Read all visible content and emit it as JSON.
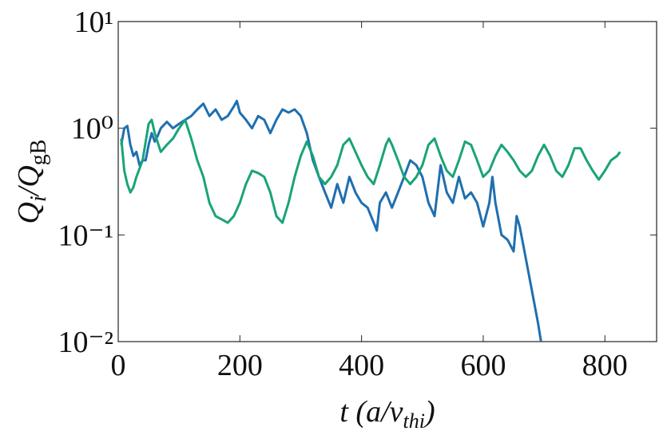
{
  "chart_data": {
    "type": "line",
    "xlabel": [
      "t (a/v",
      "thi",
      ")"
    ],
    "ylabel": [
      "Q",
      "i",
      "/Q",
      "gB"
    ],
    "xlim": [
      0,
      885
    ],
    "ylim": [
      0.01,
      10
    ],
    "log_y": true,
    "xticks": [
      0,
      200,
      400,
      600,
      800
    ],
    "yticks": [
      {
        "value": 0.01,
        "label": "10⁻²"
      },
      {
        "value": 0.1,
        "label": "10⁻¹"
      },
      {
        "value": 1,
        "label": "10⁰"
      },
      {
        "value": 10,
        "label": "10¹"
      }
    ],
    "series": [
      {
        "color": "#1f6fb0",
        "x": [
          5,
          10,
          15,
          20,
          25,
          30,
          35,
          40,
          45,
          50,
          55,
          60,
          65,
          70,
          80,
          90,
          100,
          110,
          120,
          130,
          140,
          150,
          160,
          170,
          180,
          190,
          195,
          200,
          210,
          220,
          230,
          240,
          250,
          260,
          270,
          280,
          290,
          300,
          310,
          320,
          330,
          340,
          350,
          360,
          370,
          380,
          390,
          400,
          410,
          420,
          425,
          430,
          440,
          450,
          460,
          470,
          480,
          490,
          500,
          510,
          520,
          530,
          540,
          550,
          560,
          570,
          580,
          590,
          600,
          610,
          615,
          620,
          630,
          640,
          650,
          655,
          660,
          670,
          680,
          690,
          695
        ],
        "values": [
          0.7,
          1.0,
          1.05,
          0.7,
          0.55,
          0.6,
          0.45,
          0.5,
          0.5,
          0.7,
          0.9,
          0.75,
          0.85,
          1.0,
          1.15,
          1.0,
          1.1,
          1.2,
          1.3,
          1.5,
          1.7,
          1.3,
          1.5,
          1.2,
          1.3,
          1.6,
          1.8,
          1.4,
          1.2,
          1.0,
          1.3,
          1.2,
          0.9,
          1.2,
          1.5,
          1.4,
          1.5,
          1.3,
          0.9,
          0.5,
          0.35,
          0.25,
          0.18,
          0.3,
          0.2,
          0.35,
          0.25,
          0.2,
          0.18,
          0.13,
          0.11,
          0.2,
          0.25,
          0.18,
          0.25,
          0.35,
          0.5,
          0.45,
          0.35,
          0.2,
          0.15,
          0.45,
          0.25,
          0.2,
          0.35,
          0.22,
          0.25,
          0.2,
          0.12,
          0.2,
          0.35,
          0.2,
          0.1,
          0.09,
          0.07,
          0.15,
          0.12,
          0.06,
          0.03,
          0.015,
          0.01
        ]
      },
      {
        "color": "#1aa37a",
        "x": [
          5,
          10,
          15,
          20,
          25,
          30,
          40,
          50,
          55,
          60,
          70,
          80,
          90,
          100,
          110,
          120,
          130,
          140,
          150,
          160,
          170,
          180,
          190,
          200,
          210,
          220,
          230,
          240,
          250,
          260,
          270,
          280,
          290,
          300,
          310,
          320,
          330,
          340,
          350,
          360,
          370,
          380,
          390,
          400,
          410,
          420,
          430,
          440,
          445,
          450,
          460,
          470,
          480,
          490,
          500,
          510,
          520,
          530,
          540,
          550,
          560,
          570,
          580,
          590,
          600,
          610,
          620,
          630,
          640,
          650,
          660,
          670,
          680,
          690,
          700,
          710,
          720,
          730,
          740,
          750,
          760,
          770,
          780,
          790,
          800,
          810,
          820,
          825
        ],
        "values": [
          0.8,
          0.4,
          0.3,
          0.25,
          0.28,
          0.35,
          0.5,
          1.1,
          1.2,
          0.9,
          0.6,
          0.7,
          0.8,
          1.0,
          1.2,
          0.8,
          0.5,
          0.35,
          0.2,
          0.15,
          0.14,
          0.13,
          0.15,
          0.2,
          0.3,
          0.4,
          0.38,
          0.35,
          0.25,
          0.15,
          0.13,
          0.2,
          0.35,
          0.55,
          0.75,
          0.55,
          0.35,
          0.3,
          0.35,
          0.45,
          0.7,
          0.8,
          0.6,
          0.45,
          0.35,
          0.3,
          0.45,
          0.7,
          0.8,
          0.7,
          0.5,
          0.35,
          0.3,
          0.35,
          0.45,
          0.7,
          0.8,
          0.55,
          0.4,
          0.35,
          0.5,
          0.75,
          0.7,
          0.5,
          0.35,
          0.4,
          0.55,
          0.7,
          0.6,
          0.5,
          0.4,
          0.35,
          0.4,
          0.55,
          0.7,
          0.55,
          0.4,
          0.35,
          0.45,
          0.65,
          0.65,
          0.5,
          0.4,
          0.33,
          0.4,
          0.5,
          0.55,
          0.6
        ]
      }
    ]
  }
}
